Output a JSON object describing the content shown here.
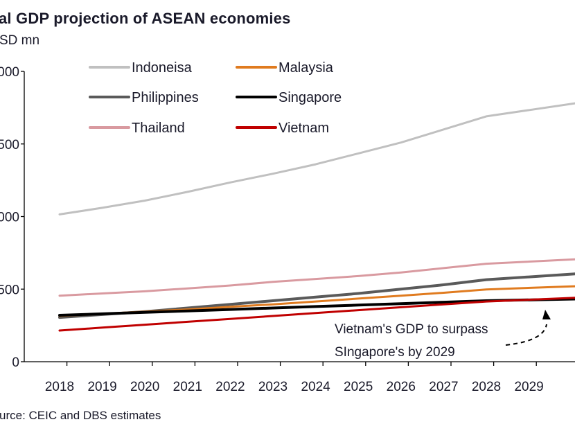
{
  "chart_data": {
    "type": "line",
    "title": "al GDP projection of ASEAN economies",
    "ylabel": "SD mn",
    "xlabel": "",
    "categories": [
      "2018",
      "2019",
      "2020",
      "2021",
      "2022",
      "2023",
      "2024",
      "2025",
      "2026",
      "2027",
      "2028",
      "2029"
    ],
    "ylim": [
      0,
      2000
    ],
    "yticks": [
      0,
      500,
      1000,
      1500,
      2000
    ],
    "ytick_labels": [
      "0",
      "500",
      "000",
      "500",
      "000"
    ],
    "grid": false,
    "legend_position": "top-left",
    "series": [
      {
        "name": "Indoneisa",
        "color": "#c0c0c0",
        "values": [
          1015,
          1060,
          1110,
          1170,
          1235,
          1295,
          1360,
          1435,
          1510,
          1600,
          1690,
          1780
        ]
      },
      {
        "name": "Malaysia",
        "color": "#e07b1f",
        "values": [
          315,
          330,
          345,
          360,
          378,
          395,
          415,
          435,
          455,
          475,
          498,
          520
        ]
      },
      {
        "name": "Philippines",
        "color": "#5a5a5a",
        "values": [
          305,
          325,
          345,
          370,
          395,
          420,
          445,
          470,
          500,
          530,
          565,
          605
        ]
      },
      {
        "name": "Singapore",
        "color": "#000000",
        "values": [
          320,
          330,
          340,
          350,
          360,
          370,
          380,
          390,
          400,
          410,
          420,
          432
        ]
      },
      {
        "name": "Thailand",
        "color": "#d99aa0",
        "values": [
          455,
          470,
          485,
          505,
          525,
          550,
          570,
          590,
          615,
          645,
          675,
          705
        ]
      },
      {
        "name": "Vietnam",
        "color": "#c00000",
        "values": [
          215,
          235,
          255,
          275,
          295,
          315,
          335,
          355,
          375,
          395,
          415,
          440
        ]
      }
    ],
    "annotation": {
      "lines": [
        "Vietnam's GDP to surpass",
        "SIngapore's by 2029"
      ],
      "arrow": "dashed-curved-arrow"
    }
  },
  "source": "urce: CEIC and DBS estimates"
}
